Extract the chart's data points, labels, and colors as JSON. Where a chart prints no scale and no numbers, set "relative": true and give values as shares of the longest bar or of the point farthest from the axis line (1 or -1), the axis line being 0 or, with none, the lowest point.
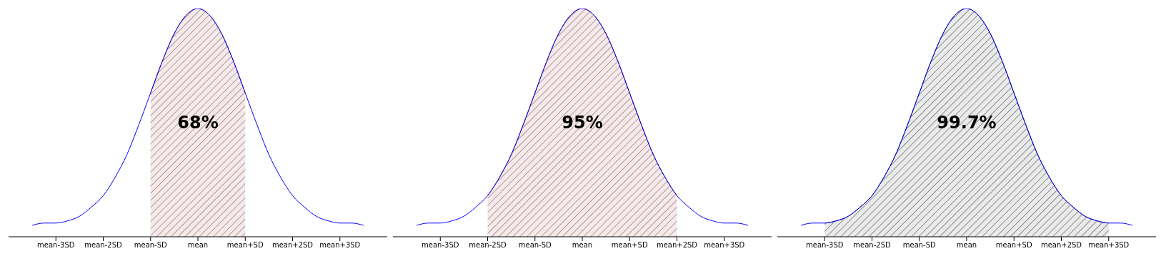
{
  "chart_data": [
    {
      "type": "line",
      "relative": true,
      "categories": [
        null,
        null,
        null,
        null,
        "mean-3SD",
        null,
        null,
        null,
        "mean-2SD",
        null,
        null,
        null,
        "mean-SD",
        null,
        null,
        null,
        "mean",
        null,
        null,
        null,
        "mean+SD",
        null,
        null,
        null,
        "mean+2SD",
        null,
        null,
        null,
        "mean+3SD",
        null,
        null,
        null,
        null
      ],
      "series": [
        {
          "color": "#0000ff",
          "values": [
            null,
            null,
            0.05,
            0.06,
            0.06,
            0.07,
            0.09,
            0.13,
            0.18,
            0.26,
            0.36,
            0.49,
            0.63,
            0.77,
            0.89,
            0.97,
            1,
            0.97,
            0.89,
            0.77,
            0.63,
            0.49,
            0.36,
            0.26,
            0.18,
            0.13,
            0.09,
            0.07,
            0.06,
            0.06,
            0.05,
            null,
            null
          ]
        },
        {
          "type": "area",
          "color": "#8b3a3a",
          "values": [
            null,
            null,
            null,
            null,
            null,
            null,
            null,
            null,
            null,
            null,
            null,
            null,
            0.63,
            0.77,
            0.89,
            0.97,
            1,
            0.97,
            0.89,
            0.77,
            0.63,
            null,
            null,
            null,
            null,
            null,
            null,
            null,
            null,
            null,
            null,
            null,
            null
          ]
        }
      ],
      "annotations": [
        "68%"
      ]
    },
    {
      "type": "line",
      "relative": true,
      "categories": [
        null,
        null,
        null,
        null,
        "mean-3SD",
        null,
        null,
        null,
        "mean-2SD",
        null,
        null,
        null,
        "mean-SD",
        null,
        null,
        null,
        "mean",
        null,
        null,
        null,
        "mean+SD",
        null,
        null,
        null,
        "mean+2SD",
        null,
        null,
        null,
        "mean+3SD",
        null,
        null,
        null,
        null
      ],
      "series": [
        {
          "color": "#0000ff",
          "values": [
            null,
            null,
            0.05,
            0.06,
            0.06,
            0.07,
            0.09,
            0.13,
            0.18,
            0.26,
            0.36,
            0.49,
            0.63,
            0.77,
            0.89,
            0.97,
            1,
            0.97,
            0.89,
            0.77,
            0.63,
            0.49,
            0.36,
            0.26,
            0.18,
            0.13,
            0.09,
            0.07,
            0.06,
            0.06,
            0.05,
            null,
            null
          ]
        },
        {
          "type": "area",
          "color": "#8b3a3a",
          "values": [
            null,
            null,
            null,
            null,
            null,
            null,
            null,
            null,
            0.18,
            0.26,
            0.36,
            0.49,
            0.63,
            0.77,
            0.89,
            0.97,
            1,
            0.97,
            0.89,
            0.77,
            0.63,
            0.49,
            0.36,
            0.26,
            0.18,
            null,
            null,
            null,
            null,
            null,
            null,
            null,
            null
          ]
        }
      ],
      "annotations": [
        "95%"
      ]
    },
    {
      "type": "line",
      "relative": true,
      "categories": [
        null,
        null,
        null,
        null,
        "mean-3SD",
        null,
        null,
        null,
        "mean-2SD",
        null,
        null,
        null,
        "mean-SD",
        null,
        null,
        null,
        "mean",
        null,
        null,
        null,
        "mean+SD",
        null,
        null,
        null,
        "mean+2SD",
        null,
        null,
        null,
        "mean+3SD",
        null,
        null,
        null,
        null
      ],
      "series": [
        {
          "color": "#0000ff",
          "values": [
            null,
            null,
            0.05,
            0.06,
            0.06,
            0.07,
            0.09,
            0.13,
            0.18,
            0.26,
            0.36,
            0.49,
            0.63,
            0.77,
            0.89,
            0.97,
            1,
            0.97,
            0.89,
            0.77,
            0.63,
            0.49,
            0.36,
            0.26,
            0.18,
            0.13,
            0.09,
            0.07,
            0.06,
            0.06,
            0.05,
            null,
            null
          ]
        },
        {
          "type": "area",
          "color": "#333333",
          "values": [
            null,
            null,
            null,
            null,
            0.06,
            0.07,
            0.09,
            0.13,
            0.18,
            0.26,
            0.36,
            0.49,
            0.63,
            0.77,
            0.89,
            0.97,
            1,
            0.97,
            0.89,
            0.77,
            0.63,
            0.49,
            0.36,
            0.26,
            0.18,
            0.13,
            0.09,
            0.07,
            0.06,
            null,
            null,
            null,
            null
          ]
        }
      ],
      "annotations": [
        "99.7%"
      ]
    }
  ]
}
